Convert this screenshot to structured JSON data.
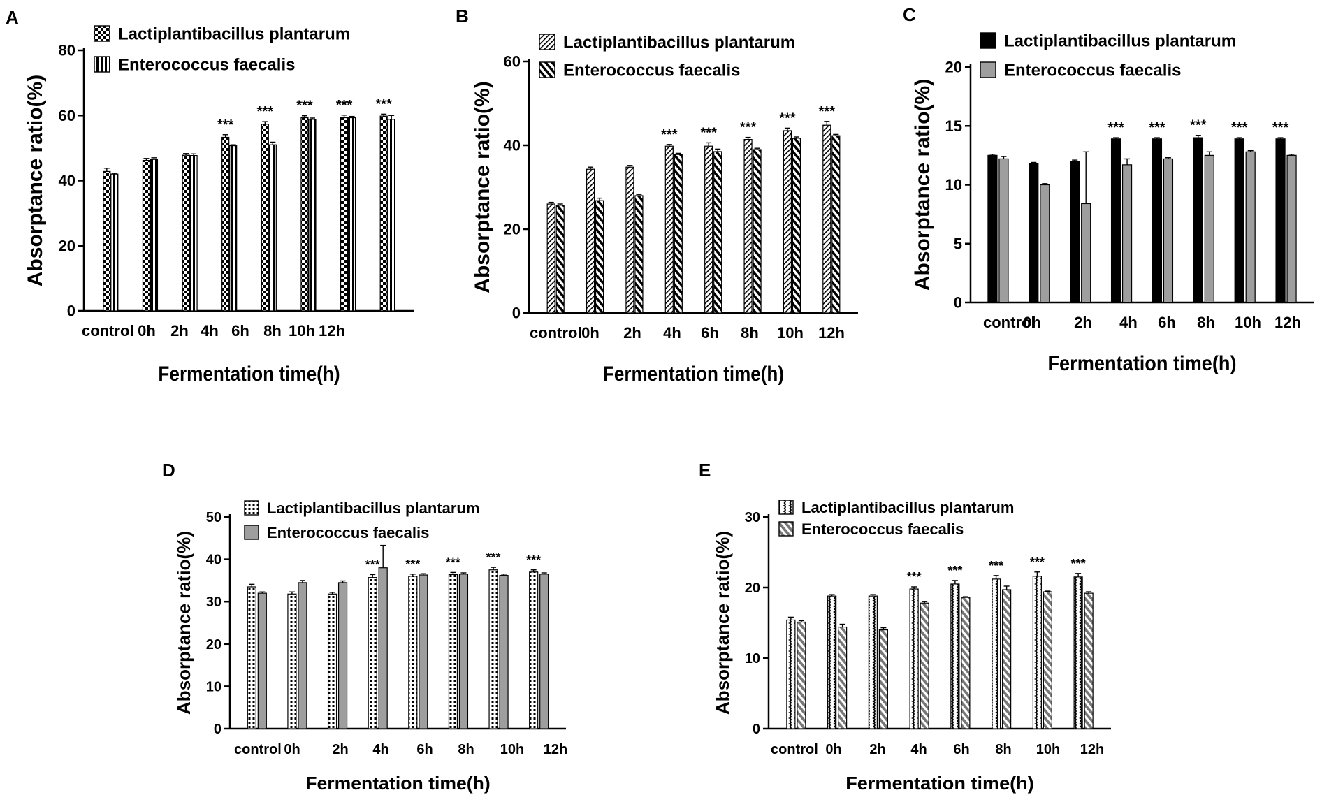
{
  "figure": {
    "panels": [
      {
        "letter": "A"
      },
      {
        "letter": "B"
      },
      {
        "letter": "C"
      },
      {
        "letter": "D"
      },
      {
        "letter": "E"
      }
    ]
  },
  "chart_data": [
    {
      "panel": "A",
      "type": "bar",
      "title": "",
      "xlabel": "Fermentation time(h)",
      "ylabel": "Absorptance ratio(%)",
      "ylim": [
        0,
        80
      ],
      "yticks": [
        0,
        20,
        40,
        60,
        80
      ],
      "categories": [
        "control",
        "0h",
        "2h",
        "4h",
        "6h",
        "8h",
        "10h",
        "12h"
      ],
      "series": [
        {
          "name": "Lactiplantibacillus plantarum",
          "pattern": "checker",
          "values": [
            42.8,
            46.2,
            47.8,
            53.3,
            57.3,
            59.3,
            59.3,
            59.8
          ],
          "errors": [
            1.0,
            0.6,
            0.5,
            0.8,
            0.8,
            0.6,
            0.8,
            0.6
          ]
        },
        {
          "name": "Enterococcus faecalis",
          "pattern": "vertical-stripes",
          "values": [
            42.0,
            46.5,
            47.7,
            50.7,
            51.0,
            58.8,
            59.3,
            58.8
          ],
          "errors": [
            0.3,
            0.5,
            0.5,
            0.3,
            0.8,
            0.4,
            0.4,
            1.2
          ]
        }
      ],
      "annotations": [
        {
          "category": "4h",
          "text": "***"
        },
        {
          "category": "6h",
          "text": "***"
        },
        {
          "category": "8h",
          "text": "***"
        },
        {
          "category": "10h",
          "text": "***"
        },
        {
          "category": "12h",
          "text": "***"
        }
      ],
      "legend": "top-left"
    },
    {
      "panel": "B",
      "type": "bar",
      "title": "",
      "xlabel": "Fermentation time(h)",
      "ylabel": "Absorptance ratio(%)",
      "ylim": [
        0,
        60
      ],
      "yticks": [
        0,
        20,
        40,
        60
      ],
      "categories": [
        "control",
        "0h",
        "2h",
        "4h",
        "6h",
        "8h",
        "10h",
        "12h"
      ],
      "series": [
        {
          "name": "Lactiplantibacillus plantarum",
          "pattern": "fine-diagonal",
          "values": [
            26.0,
            34.3,
            34.8,
            39.8,
            39.8,
            41.4,
            43.5,
            44.8
          ],
          "errors": [
            0.4,
            0.5,
            0.4,
            0.4,
            0.8,
            0.5,
            0.6,
            0.9
          ]
        },
        {
          "name": "Enterococcus faecalis",
          "pattern": "diagonal",
          "values": [
            25.7,
            26.8,
            28.0,
            37.8,
            38.5,
            39.0,
            41.7,
            42.3
          ],
          "errors": [
            0.3,
            0.6,
            0.3,
            0.3,
            0.6,
            0.3,
            0.3,
            0.3
          ]
        }
      ],
      "annotations": [
        {
          "category": "4h",
          "text": "***"
        },
        {
          "category": "6h",
          "text": "***"
        },
        {
          "category": "8h",
          "text": "***"
        },
        {
          "category": "10h",
          "text": "***"
        },
        {
          "category": "12h",
          "text": "***"
        }
      ],
      "legend": "top-left"
    },
    {
      "panel": "C",
      "type": "bar",
      "title": "",
      "xlabel": "Fermentation time(h)",
      "ylabel": "Absorptance ratio(%)",
      "ylim": [
        0,
        20
      ],
      "yticks": [
        0,
        5,
        10,
        15,
        20
      ],
      "categories": [
        "control",
        "0h",
        "2h",
        "4h",
        "6h",
        "8h",
        "10h",
        "12h"
      ],
      "series": [
        {
          "name": "Lactiplantibacillus plantarum",
          "pattern": "solid-black",
          "values": [
            12.5,
            11.8,
            12.0,
            13.9,
            13.9,
            14.0,
            13.9,
            13.9
          ],
          "errors": [
            0.1,
            0.1,
            0.1,
            0.1,
            0.1,
            0.2,
            0.1,
            0.1
          ]
        },
        {
          "name": "Enterococcus faecalis",
          "pattern": "solid-gray",
          "values": [
            12.2,
            10.0,
            8.4,
            11.7,
            12.2,
            12.5,
            12.8,
            12.5
          ],
          "errors": [
            0.2,
            0.1,
            4.4,
            0.5,
            0.1,
            0.3,
            0.1,
            0.1
          ]
        }
      ],
      "annotations": [
        {
          "category": "4h",
          "text": "***"
        },
        {
          "category": "6h",
          "text": "***"
        },
        {
          "category": "8h",
          "text": "***"
        },
        {
          "category": "10h",
          "text": "***"
        },
        {
          "category": "12h",
          "text": "***"
        }
      ],
      "legend": "top-left"
    },
    {
      "panel": "D",
      "type": "bar",
      "title": "",
      "xlabel": "Fermentation time(h)",
      "ylabel": "Absorptance ratio(%)",
      "ylim": [
        0,
        50
      ],
      "yticks": [
        0,
        10,
        20,
        30,
        40,
        50
      ],
      "categories": [
        "control",
        "0h",
        "2h",
        "4h",
        "6h",
        "8h",
        "10h",
        "12h"
      ],
      "series": [
        {
          "name": "Lactiplantibacillus plantarum",
          "pattern": "dotted-column",
          "values": [
            33.5,
            31.8,
            31.8,
            35.7,
            36.0,
            36.4,
            37.5,
            37.0
          ],
          "errors": [
            0.6,
            0.5,
            0.4,
            0.7,
            0.5,
            0.5,
            0.6,
            0.5
          ]
        },
        {
          "name": "Enterococcus faecalis",
          "pattern": "solid-gray",
          "values": [
            32.0,
            34.5,
            34.5,
            38.0,
            36.3,
            36.5,
            36.2,
            36.5
          ],
          "errors": [
            0.3,
            0.5,
            0.4,
            5.3,
            0.3,
            0.3,
            0.3,
            0.3
          ]
        }
      ],
      "annotations": [
        {
          "category": "4h",
          "text": "***"
        },
        {
          "category": "6h",
          "text": "***"
        },
        {
          "category": "8h",
          "text": "***"
        },
        {
          "category": "10h",
          "text": "***"
        },
        {
          "category": "12h",
          "text": "***"
        }
      ],
      "legend": "top-left"
    },
    {
      "panel": "E",
      "type": "bar",
      "title": "",
      "xlabel": "Fermentation time(h)",
      "ylabel": "Absorptance ratio(%)",
      "ylim": [
        0,
        30
      ],
      "yticks": [
        0,
        10,
        20,
        30
      ],
      "categories": [
        "control",
        "0h",
        "2h",
        "4h",
        "6h",
        "8h",
        "10h",
        "12h"
      ],
      "series": [
        {
          "name": "Lactiplantibacillus plantarum",
          "pattern": "wavy",
          "values": [
            15.4,
            18.8,
            18.8,
            19.8,
            20.5,
            21.2,
            21.6,
            21.5
          ],
          "errors": [
            0.4,
            0.2,
            0.2,
            0.3,
            0.5,
            0.5,
            0.6,
            0.5
          ]
        },
        {
          "name": "Enterococcus faecalis",
          "pattern": "diagonal-gray",
          "values": [
            15.1,
            14.4,
            14.0,
            17.8,
            18.6,
            19.7,
            19.4,
            19.2
          ],
          "errors": [
            0.2,
            0.4,
            0.3,
            0.2,
            0.1,
            0.5,
            0.1,
            0.2
          ]
        }
      ],
      "annotations": [
        {
          "category": "4h",
          "text": "***"
        },
        {
          "category": "6h",
          "text": "***"
        },
        {
          "category": "8h",
          "text": "***"
        },
        {
          "category": "10h",
          "text": "***"
        },
        {
          "category": "12h",
          "text": "***"
        }
      ],
      "legend": "top-left"
    }
  ]
}
